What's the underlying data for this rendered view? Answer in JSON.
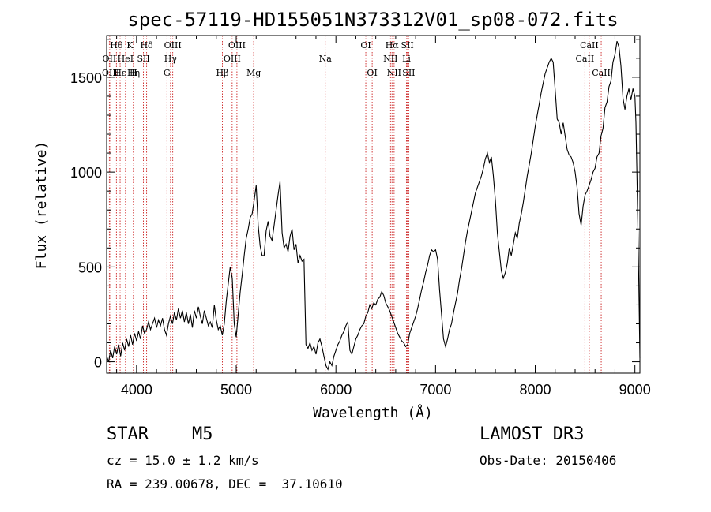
{
  "chart_data": {
    "type": "line",
    "title": "spec-57119-HD155051N373312V01_sp08-072.fits",
    "xlabel": "Wavelength (Å)",
    "ylabel": "Flux (relative)",
    "xlim": [
      3700,
      9050
    ],
    "ylim": [
      -60,
      1720
    ],
    "x_ticks": [
      4000,
      5000,
      6000,
      7000,
      8000,
      9000
    ],
    "y_ticks": [
      0,
      500,
      1000,
      1500
    ],
    "series": [
      {
        "name": "flux",
        "points": [
          [
            3700,
            30
          ],
          [
            3720,
            0
          ],
          [
            3740,
            60
          ],
          [
            3760,
            20
          ],
          [
            3780,
            80
          ],
          [
            3800,
            40
          ],
          [
            3820,
            90
          ],
          [
            3840,
            30
          ],
          [
            3860,
            100
          ],
          [
            3880,
            60
          ],
          [
            3900,
            120
          ],
          [
            3920,
            80
          ],
          [
            3940,
            140
          ],
          [
            3960,
            90
          ],
          [
            3980,
            150
          ],
          [
            4000,
            110
          ],
          [
            4020,
            160
          ],
          [
            4040,
            120
          ],
          [
            4060,
            190
          ],
          [
            4080,
            150
          ],
          [
            4100,
            170
          ],
          [
            4120,
            210
          ],
          [
            4140,
            170
          ],
          [
            4160,
            200
          ],
          [
            4180,
            230
          ],
          [
            4200,
            180
          ],
          [
            4220,
            220
          ],
          [
            4240,
            190
          ],
          [
            4260,
            230
          ],
          [
            4280,
            170
          ],
          [
            4300,
            140
          ],
          [
            4320,
            200
          ],
          [
            4340,
            240
          ],
          [
            4360,
            200
          ],
          [
            4380,
            260
          ],
          [
            4400,
            220
          ],
          [
            4420,
            280
          ],
          [
            4440,
            230
          ],
          [
            4460,
            270
          ],
          [
            4480,
            210
          ],
          [
            4500,
            260
          ],
          [
            4520,
            200
          ],
          [
            4540,
            250
          ],
          [
            4560,
            180
          ],
          [
            4580,
            270
          ],
          [
            4600,
            230
          ],
          [
            4620,
            290
          ],
          [
            4640,
            240
          ],
          [
            4660,
            200
          ],
          [
            4680,
            270
          ],
          [
            4700,
            230
          ],
          [
            4720,
            190
          ],
          [
            4740,
            210
          ],
          [
            4760,
            180
          ],
          [
            4780,
            300
          ],
          [
            4800,
            220
          ],
          [
            4820,
            170
          ],
          [
            4840,
            190
          ],
          [
            4860,
            140
          ],
          [
            4880,
            200
          ],
          [
            4900,
            320
          ],
          [
            4920,
            410
          ],
          [
            4940,
            500
          ],
          [
            4960,
            440
          ],
          [
            4980,
            200
          ],
          [
            5000,
            130
          ],
          [
            5020,
            250
          ],
          [
            5040,
            370
          ],
          [
            5060,
            460
          ],
          [
            5080,
            560
          ],
          [
            5100,
            650
          ],
          [
            5120,
            700
          ],
          [
            5140,
            760
          ],
          [
            5160,
            780
          ],
          [
            5180,
            850
          ],
          [
            5200,
            930
          ],
          [
            5220,
            720
          ],
          [
            5240,
            610
          ],
          [
            5260,
            560
          ],
          [
            5280,
            560
          ],
          [
            5300,
            690
          ],
          [
            5320,
            740
          ],
          [
            5340,
            660
          ],
          [
            5360,
            640
          ],
          [
            5380,
            720
          ],
          [
            5400,
            800
          ],
          [
            5420,
            880
          ],
          [
            5440,
            950
          ],
          [
            5460,
            680
          ],
          [
            5480,
            600
          ],
          [
            5500,
            620
          ],
          [
            5520,
            580
          ],
          [
            5540,
            660
          ],
          [
            5560,
            700
          ],
          [
            5580,
            590
          ],
          [
            5600,
            620
          ],
          [
            5620,
            520
          ],
          [
            5640,
            560
          ],
          [
            5660,
            530
          ],
          [
            5680,
            540
          ],
          [
            5700,
            90
          ],
          [
            5720,
            70
          ],
          [
            5740,
            100
          ],
          [
            5760,
            60
          ],
          [
            5780,
            80
          ],
          [
            5800,
            40
          ],
          [
            5820,
            100
          ],
          [
            5840,
            120
          ],
          [
            5860,
            80
          ],
          [
            5880,
            30
          ],
          [
            5900,
            -20
          ],
          [
            5920,
            -40
          ],
          [
            5940,
            0
          ],
          [
            5960,
            -20
          ],
          [
            5980,
            30
          ],
          [
            6000,
            60
          ],
          [
            6020,
            90
          ],
          [
            6040,
            110
          ],
          [
            6060,
            140
          ],
          [
            6080,
            160
          ],
          [
            6100,
            190
          ],
          [
            6120,
            210
          ],
          [
            6140,
            60
          ],
          [
            6160,
            40
          ],
          [
            6180,
            80
          ],
          [
            6200,
            120
          ],
          [
            6220,
            140
          ],
          [
            6240,
            170
          ],
          [
            6260,
            190
          ],
          [
            6280,
            200
          ],
          [
            6300,
            240
          ],
          [
            6320,
            260
          ],
          [
            6340,
            300
          ],
          [
            6360,
            280
          ],
          [
            6380,
            310
          ],
          [
            6400,
            300
          ],
          [
            6420,
            330
          ],
          [
            6440,
            340
          ],
          [
            6460,
            370
          ],
          [
            6480,
            350
          ],
          [
            6500,
            310
          ],
          [
            6520,
            290
          ],
          [
            6540,
            270
          ],
          [
            6560,
            240
          ],
          [
            6580,
            210
          ],
          [
            6600,
            180
          ],
          [
            6620,
            150
          ],
          [
            6640,
            130
          ],
          [
            6660,
            110
          ],
          [
            6680,
            100
          ],
          [
            6700,
            80
          ],
          [
            6720,
            90
          ],
          [
            6740,
            150
          ],
          [
            6760,
            180
          ],
          [
            6780,
            210
          ],
          [
            6800,
            240
          ],
          [
            6820,
            280
          ],
          [
            6840,
            330
          ],
          [
            6860,
            380
          ],
          [
            6880,
            420
          ],
          [
            6900,
            470
          ],
          [
            6920,
            510
          ],
          [
            6940,
            560
          ],
          [
            6960,
            590
          ],
          [
            6980,
            580
          ],
          [
            7000,
            590
          ],
          [
            7020,
            540
          ],
          [
            7040,
            380
          ],
          [
            7060,
            250
          ],
          [
            7080,
            120
          ],
          [
            7100,
            80
          ],
          [
            7120,
            120
          ],
          [
            7140,
            170
          ],
          [
            7160,
            200
          ],
          [
            7180,
            260
          ],
          [
            7200,
            310
          ],
          [
            7220,
            360
          ],
          [
            7240,
            430
          ],
          [
            7260,
            490
          ],
          [
            7280,
            560
          ],
          [
            7300,
            630
          ],
          [
            7320,
            690
          ],
          [
            7340,
            740
          ],
          [
            7360,
            790
          ],
          [
            7380,
            840
          ],
          [
            7400,
            890
          ],
          [
            7420,
            920
          ],
          [
            7440,
            950
          ],
          [
            7460,
            980
          ],
          [
            7480,
            1020
          ],
          [
            7500,
            1070
          ],
          [
            7520,
            1100
          ],
          [
            7540,
            1050
          ],
          [
            7560,
            1080
          ],
          [
            7580,
            980
          ],
          [
            7600,
            850
          ],
          [
            7620,
            680
          ],
          [
            7640,
            580
          ],
          [
            7660,
            480
          ],
          [
            7680,
            440
          ],
          [
            7700,
            470
          ],
          [
            7720,
            520
          ],
          [
            7740,
            600
          ],
          [
            7760,
            560
          ],
          [
            7780,
            620
          ],
          [
            7800,
            680
          ],
          [
            7820,
            650
          ],
          [
            7840,
            730
          ],
          [
            7860,
            780
          ],
          [
            7880,
            840
          ],
          [
            7900,
            910
          ],
          [
            7920,
            980
          ],
          [
            7940,
            1040
          ],
          [
            7960,
            1100
          ],
          [
            7980,
            1170
          ],
          [
            8000,
            1240
          ],
          [
            8020,
            1300
          ],
          [
            8040,
            1360
          ],
          [
            8060,
            1420
          ],
          [
            8080,
            1470
          ],
          [
            8100,
            1520
          ],
          [
            8120,
            1550
          ],
          [
            8140,
            1580
          ],
          [
            8160,
            1600
          ],
          [
            8180,
            1580
          ],
          [
            8200,
            1430
          ],
          [
            8220,
            1280
          ],
          [
            8240,
            1260
          ],
          [
            8260,
            1200
          ],
          [
            8280,
            1260
          ],
          [
            8300,
            1190
          ],
          [
            8320,
            1120
          ],
          [
            8340,
            1090
          ],
          [
            8360,
            1080
          ],
          [
            8380,
            1050
          ],
          [
            8400,
            1000
          ],
          [
            8420,
            920
          ],
          [
            8440,
            780
          ],
          [
            8460,
            720
          ],
          [
            8480,
            820
          ],
          [
            8500,
            880
          ],
          [
            8520,
            900
          ],
          [
            8540,
            930
          ],
          [
            8560,
            960
          ],
          [
            8580,
            1000
          ],
          [
            8600,
            1020
          ],
          [
            8620,
            1080
          ],
          [
            8640,
            1100
          ],
          [
            8660,
            1190
          ],
          [
            8680,
            1230
          ],
          [
            8700,
            1340
          ],
          [
            8720,
            1370
          ],
          [
            8740,
            1450
          ],
          [
            8760,
            1480
          ],
          [
            8780,
            1580
          ],
          [
            8800,
            1620
          ],
          [
            8820,
            1690
          ],
          [
            8840,
            1660
          ],
          [
            8860,
            1560
          ],
          [
            8880,
            1390
          ],
          [
            8900,
            1330
          ],
          [
            8920,
            1400
          ],
          [
            8940,
            1440
          ],
          [
            8960,
            1380
          ],
          [
            8980,
            1440
          ],
          [
            9000,
            1400
          ],
          [
            9010,
            1260
          ],
          [
            9020,
            1000
          ],
          [
            9030,
            700
          ],
          [
            9040,
            400
          ],
          [
            9050,
            20
          ]
        ]
      }
    ],
    "lines": [
      {
        "label": "Hθ",
        "x": 3798,
        "row": 1
      },
      {
        "label": "OII",
        "x": 3727,
        "row": 2
      },
      {
        "label": "OIII",
        "x": 3740,
        "row": 3
      },
      {
        "label": "Hε",
        "x": 3835,
        "row": 3
      },
      {
        "label": "K",
        "x": 3934,
        "row": 1
      },
      {
        "label": "HeI",
        "x": 3889,
        "row": 2
      },
      {
        "label": "Hη",
        "x": 3970,
        "row": 3
      },
      {
        "label": "SII",
        "x": 4069,
        "row": 2
      },
      {
        "label": "H",
        "x": 3968,
        "row": 3
      },
      {
        "label": "Hδ",
        "x": 4101,
        "row": 1
      },
      {
        "label": "OIII",
        "x": 4363,
        "row": 1
      },
      {
        "label": "Hγ",
        "x": 4341,
        "row": 2
      },
      {
        "label": "G",
        "x": 4305,
        "row": 3
      },
      {
        "label": "OIII",
        "x": 5007,
        "row": 1
      },
      {
        "label": "OIII",
        "x": 4959,
        "row": 2
      },
      {
        "label": "Hβ",
        "x": 4861,
        "row": 3
      },
      {
        "label": "Mg",
        "x": 5175,
        "row": 3
      },
      {
        "label": "Na",
        "x": 5893,
        "row": 2
      },
      {
        "label": "OI",
        "x": 6300,
        "row": 1
      },
      {
        "label": "OI",
        "x": 6364,
        "row": 3
      },
      {
        "label": "Hα",
        "x": 6563,
        "row": 1
      },
      {
        "label": "SII",
        "x": 6717,
        "row": 1
      },
      {
        "label": "NII",
        "x": 6548,
        "row": 2
      },
      {
        "label": "Li",
        "x": 6708,
        "row": 2
      },
      {
        "label": "NII",
        "x": 6584,
        "row": 3
      },
      {
        "label": "SII",
        "x": 6731,
        "row": 3
      },
      {
        "label": "CaII",
        "x": 8542,
        "row": 1
      },
      {
        "label": "CaII",
        "x": 8498,
        "row": 2
      },
      {
        "label": "CaII",
        "x": 8662,
        "row": 3
      }
    ]
  },
  "info": {
    "object_type": "STAR",
    "subclass": "M5",
    "survey": "LAMOST DR3",
    "cz": "cz = 15.0 ± 1.2 km/s",
    "obs_date": "Obs-Date: 20150406",
    "coords": "RA = 239.00678, DEC =  37.10610"
  }
}
